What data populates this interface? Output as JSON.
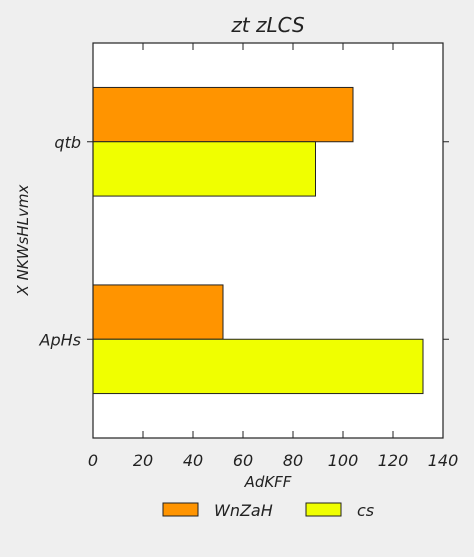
{
  "chart_data": {
    "type": "bar",
    "orientation": "horizontal",
    "title": "zt zLCS",
    "xlabel": "AdKFF",
    "ylabel": "X NKWsHLvmx",
    "categories": [
      "qtb",
      "ApHs"
    ],
    "series": [
      {
        "name": "WnZaH",
        "color": "#ff9400",
        "values": [
          104,
          52
        ]
      },
      {
        "name": "cs",
        "color": "#f0ff00",
        "values": [
          89,
          132
        ]
      }
    ],
    "xlim": [
      0,
      140
    ],
    "xticks": [
      0,
      20,
      40,
      60,
      80,
      100,
      120,
      140
    ],
    "grid": false,
    "legend": "bottom-center"
  }
}
